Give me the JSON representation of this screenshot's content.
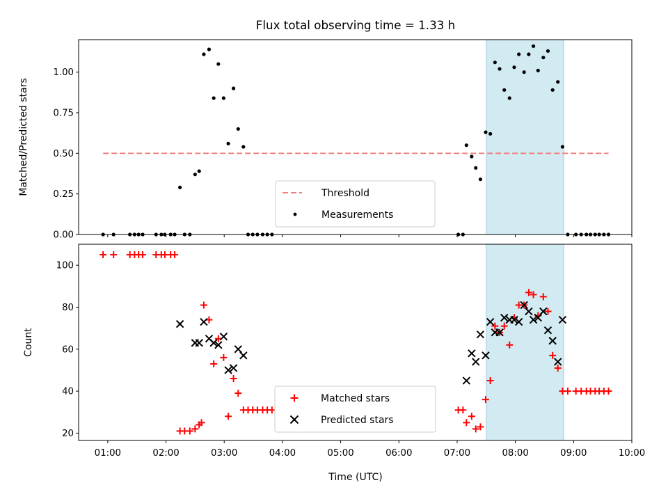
{
  "chart_data": {
    "title": "Flux total observing time = 1.33 h",
    "xlabel": "Time (UTC)",
    "x_tick_labels": [
      "01:00",
      "02:00",
      "03:00",
      "04:00",
      "05:00",
      "06:00",
      "07:00",
      "08:00",
      "09:00",
      "10:00"
    ],
    "x_ticks": [
      1,
      2,
      3,
      4,
      5,
      6,
      7,
      8,
      9,
      10
    ],
    "xlim": [
      0.5,
      10.0
    ],
    "highlight_span": [
      7.5,
      8.83
    ],
    "highlight_color": "#add8e6",
    "panels": [
      {
        "type": "scatter",
        "ylabel": "Matched/Predicted stars",
        "ylim": [
          0.0,
          1.2
        ],
        "y_ticks": [
          0.0,
          0.25,
          0.5,
          0.75,
          1.0
        ],
        "y_tick_labels": [
          "0.00",
          "0.25",
          "0.50",
          "0.75",
          "1.00"
        ],
        "threshold": {
          "name": "Threshold",
          "y": 0.5,
          "x_range": [
            0.92,
            9.6
          ],
          "color": "#f08080"
        },
        "legend": [
          "Threshold",
          "Measurements"
        ],
        "series": [
          {
            "name": "Measurements",
            "marker": "dot",
            "color": "#000000",
            "points": [
              [
                0.92,
                0
              ],
              [
                1.1,
                0
              ],
              [
                1.38,
                0
              ],
              [
                1.46,
                0
              ],
              [
                1.53,
                0
              ],
              [
                1.6,
                0
              ],
              [
                1.83,
                0
              ],
              [
                1.92,
                0
              ],
              [
                1.98,
                0
              ],
              [
                2.08,
                0
              ],
              [
                2.15,
                0
              ],
              [
                2.24,
                0.29
              ],
              [
                2.32,
                0
              ],
              [
                2.41,
                0
              ],
              [
                2.5,
                0.37
              ],
              [
                2.57,
                0.39
              ],
              [
                2.65,
                1.11
              ],
              [
                2.74,
                1.14
              ],
              [
                2.82,
                0.84
              ],
              [
                2.9,
                1.05
              ],
              [
                2.99,
                0.84
              ],
              [
                3.07,
                0.56
              ],
              [
                3.16,
                0.9
              ],
              [
                3.24,
                0.65
              ],
              [
                3.33,
                0.54
              ],
              [
                3.41,
                0
              ],
              [
                3.49,
                0
              ],
              [
                3.57,
                0
              ],
              [
                3.66,
                0
              ],
              [
                3.74,
                0
              ],
              [
                3.82,
                0
              ],
              [
                7.02,
                0
              ],
              [
                7.1,
                0
              ],
              [
                7.16,
                0.55
              ],
              [
                7.25,
                0.48
              ],
              [
                7.32,
                0.41
              ],
              [
                7.4,
                0.34
              ],
              [
                7.49,
                0.63
              ],
              [
                7.57,
                0.62
              ],
              [
                7.65,
                1.06
              ],
              [
                7.73,
                1.02
              ],
              [
                7.81,
                0.89
              ],
              [
                7.9,
                0.84
              ],
              [
                7.98,
                1.03
              ],
              [
                8.06,
                1.11
              ],
              [
                8.15,
                1.0
              ],
              [
                8.23,
                1.11
              ],
              [
                8.31,
                1.16
              ],
              [
                8.39,
                1.01
              ],
              [
                8.48,
                1.09
              ],
              [
                8.56,
                1.13
              ],
              [
                8.64,
                0.89
              ],
              [
                8.73,
                0.94
              ],
              [
                8.81,
                0.54
              ],
              [
                8.9,
                0
              ],
              [
                9.04,
                0
              ],
              [
                9.13,
                0
              ],
              [
                9.22,
                0
              ],
              [
                9.29,
                0
              ],
              [
                9.37,
                0
              ],
              [
                9.44,
                0
              ],
              [
                9.52,
                0
              ],
              [
                9.6,
                0
              ]
            ]
          }
        ]
      },
      {
        "type": "scatter",
        "ylabel": "Count",
        "ylim": [
          16.5,
          110
        ],
        "y_ticks": [
          20,
          40,
          60,
          80,
          100
        ],
        "y_tick_labels": [
          "20",
          "40",
          "60",
          "80",
          "100"
        ],
        "legend": [
          "Matched stars",
          "Predicted stars"
        ],
        "series": [
          {
            "name": "Matched stars",
            "marker": "plus",
            "color": "#ff0000",
            "points": [
              [
                0.92,
                105
              ],
              [
                1.1,
                105
              ],
              [
                1.38,
                105
              ],
              [
                1.46,
                105
              ],
              [
                1.53,
                105
              ],
              [
                1.6,
                105
              ],
              [
                1.83,
                105
              ],
              [
                1.92,
                105
              ],
              [
                1.98,
                105
              ],
              [
                2.08,
                105
              ],
              [
                2.15,
                105
              ],
              [
                2.24,
                21
              ],
              [
                2.32,
                21
              ],
              [
                2.41,
                21
              ],
              [
                2.5,
                22
              ],
              [
                2.57,
                24
              ],
              [
                2.61,
                25
              ],
              [
                2.65,
                81
              ],
              [
                2.74,
                74
              ],
              [
                2.82,
                53
              ],
              [
                2.9,
                65
              ],
              [
                2.99,
                56
              ],
              [
                3.07,
                28
              ],
              [
                3.16,
                46
              ],
              [
                3.24,
                39
              ],
              [
                3.33,
                31
              ],
              [
                3.41,
                31
              ],
              [
                3.49,
                31
              ],
              [
                3.57,
                31
              ],
              [
                3.66,
                31
              ],
              [
                3.74,
                31
              ],
              [
                3.82,
                31
              ],
              [
                7.02,
                31
              ],
              [
                7.1,
                31
              ],
              [
                7.16,
                25
              ],
              [
                7.25,
                28
              ],
              [
                7.32,
                22
              ],
              [
                7.4,
                23
              ],
              [
                7.49,
                36
              ],
              [
                7.57,
                45
              ],
              [
                7.65,
                71
              ],
              [
                7.73,
                68
              ],
              [
                7.81,
                71
              ],
              [
                7.9,
                62
              ],
              [
                7.98,
                75
              ],
              [
                8.06,
                81
              ],
              [
                8.15,
                81
              ],
              [
                8.23,
                87
              ],
              [
                8.31,
                86
              ],
              [
                8.39,
                76
              ],
              [
                8.48,
                85
              ],
              [
                8.56,
                78
              ],
              [
                8.64,
                57
              ],
              [
                8.73,
                51
              ],
              [
                8.81,
                40
              ],
              [
                8.9,
                40
              ],
              [
                9.04,
                40
              ],
              [
                9.13,
                40
              ],
              [
                9.22,
                40
              ],
              [
                9.29,
                40
              ],
              [
                9.37,
                40
              ],
              [
                9.44,
                40
              ],
              [
                9.52,
                40
              ],
              [
                9.6,
                40
              ]
            ]
          },
          {
            "name": "Predicted stars",
            "marker": "cross",
            "color": "#000000",
            "points": [
              [
                2.24,
                72
              ],
              [
                2.5,
                63
              ],
              [
                2.57,
                63
              ],
              [
                2.65,
                73
              ],
              [
                2.74,
                65
              ],
              [
                2.82,
                63
              ],
              [
                2.9,
                62
              ],
              [
                2.99,
                66
              ],
              [
                3.07,
                50
              ],
              [
                3.16,
                51
              ],
              [
                3.24,
                60
              ],
              [
                3.33,
                57
              ],
              [
                7.16,
                45
              ],
              [
                7.25,
                58
              ],
              [
                7.32,
                54
              ],
              [
                7.4,
                67
              ],
              [
                7.49,
                57
              ],
              [
                7.57,
                73
              ],
              [
                7.65,
                68
              ],
              [
                7.73,
                68
              ],
              [
                7.81,
                75
              ],
              [
                7.9,
                74
              ],
              [
                7.98,
                74
              ],
              [
                8.06,
                73
              ],
              [
                8.15,
                81
              ],
              [
                8.23,
                78
              ],
              [
                8.31,
                74
              ],
              [
                8.39,
                75
              ],
              [
                8.48,
                78
              ],
              [
                8.56,
                69
              ],
              [
                8.64,
                64
              ],
              [
                8.73,
                54
              ],
              [
                8.81,
                74
              ]
            ]
          }
        ]
      }
    ]
  }
}
